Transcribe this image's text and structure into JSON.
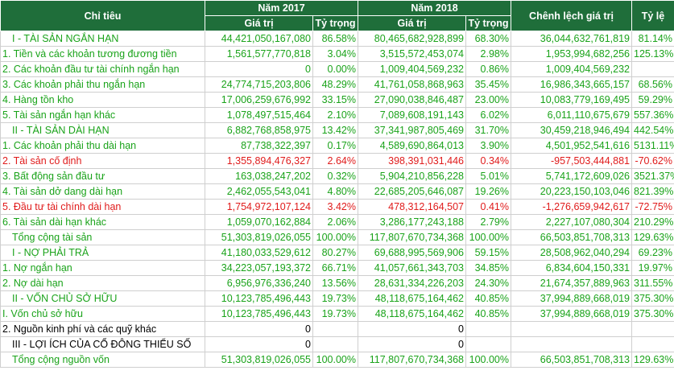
{
  "header": {
    "chi_tieu": "Chỉ tiêu",
    "nam_2017": "Năm 2017",
    "nam_2018": "Năm 2018",
    "chenh_lech": "Chênh lệch giá trị",
    "ty_le": "Tỷ lệ",
    "gia_tri_2017": "Giá trị",
    "ty_trong_2017": "Tỷ trọng",
    "gia_tri_2018": "Giá trị",
    "ty_trong_2018": "Tỷ trọng"
  },
  "rows": [
    {
      "label": "I - TÀI SẢN NGẮN HẠN",
      "v2017": "44,421,050,167,080",
      "p2017": "86.58%",
      "v2018": "80,465,682,928,899",
      "p2018": "68.30%",
      "diff": "36,044,632,761,819",
      "ratio": "81.14%"
    },
    {
      "label": "1. Tiền và các khoản tương đương tiền",
      "v2017": "1,561,577,770,818",
      "p2017": "3.04%",
      "v2018": "3,515,572,453,074",
      "p2018": "2.98%",
      "diff": "1,953,994,682,256",
      "ratio": "125.13%"
    },
    {
      "label": "2. Các khoản đầu tư tài chính ngắn hạn",
      "v2017": "0",
      "p2017": "0.00%",
      "v2018": "1,009,404,569,232",
      "p2018": "0.86%",
      "diff": "1,009,404,569,232",
      "ratio": ""
    },
    {
      "label": "3. Các khoản phải thu ngắn hạn",
      "v2017": "24,774,715,203,806",
      "p2017": "48.29%",
      "v2018": "41,761,058,868,963",
      "p2018": "35.45%",
      "diff": "16,986,343,665,157",
      "ratio": "68.56%"
    },
    {
      "label": "4. Hàng tồn kho",
      "v2017": "17,006,259,676,992",
      "p2017": "33.15%",
      "v2018": "27,090,038,846,487",
      "p2018": "23.00%",
      "diff": "10,083,779,169,495",
      "ratio": "59.29%"
    },
    {
      "label": "5. Tài sản ngắn hạn khác",
      "v2017": "1,078,497,515,464",
      "p2017": "2.10%",
      "v2018": "7,089,608,191,143",
      "p2018": "6.02%",
      "diff": "6,011,110,675,679",
      "ratio": "557.36%"
    },
    {
      "label": "II - TÀI SẢN DÀI HẠN",
      "v2017": "6,882,768,858,975",
      "p2017": "13.42%",
      "v2018": "37,341,987,805,469",
      "p2018": "31.70%",
      "diff": "30,459,218,946,494",
      "ratio": "442.54%"
    },
    {
      "label": "1. Các khoản phải thu dài hạn",
      "v2017": "87,738,322,397",
      "p2017": "0.17%",
      "v2018": "4,589,690,864,013",
      "p2018": "3.90%",
      "diff": "4,501,952,541,616",
      "ratio": "5131.11%"
    },
    {
      "label": "2. Tài sản cố định",
      "v2017": "1,355,894,476,327",
      "p2017": "2.64%",
      "v2018": "398,391,031,446",
      "p2018": "0.34%",
      "diff": "-957,503,444,881",
      "ratio": "-70.62%"
    },
    {
      "label": "3. Bất động sản đầu tư",
      "v2017": "163,038,247,202",
      "p2017": "0.32%",
      "v2018": "5,904,210,856,228",
      "p2018": "5.01%",
      "diff": "5,741,172,609,026",
      "ratio": "3521.37%"
    },
    {
      "label": "4. Tài sản dở dang dài hạn",
      "v2017": "2,462,055,543,041",
      "p2017": "4.80%",
      "v2018": "22,685,205,646,087",
      "p2018": "19.26%",
      "diff": "20,223,150,103,046",
      "ratio": "821.39%"
    },
    {
      "label": "5. Đầu tư tài chính dài hạn",
      "v2017": "1,754,972,107,124",
      "p2017": "3.42%",
      "v2018": "478,312,164,507",
      "p2018": "0.41%",
      "diff": "-1,276,659,942,617",
      "ratio": "-72.75%"
    },
    {
      "label": "6. Tài sản dài hạn khác",
      "v2017": "1,059,070,162,884",
      "p2017": "2.06%",
      "v2018": "3,286,177,243,188",
      "p2018": "2.79%",
      "diff": "2,227,107,080,304",
      "ratio": "210.29%"
    },
    {
      "label": "Tổng cộng tài sản",
      "v2017": "51,303,819,026,055",
      "p2017": "100.00%",
      "v2018": "117,807,670,734,368",
      "p2018": "100.00%",
      "diff": "66,503,851,708,313",
      "ratio": "129.63%"
    },
    {
      "label": "I - NỢ PHẢI TRẢ",
      "v2017": "41,180,033,529,612",
      "p2017": "80.27%",
      "v2018": "69,688,995,569,906",
      "p2018": "59.15%",
      "diff": "28,508,962,040,294",
      "ratio": "69.23%"
    },
    {
      "label": "1. Nợ ngắn hạn",
      "v2017": "34,223,057,193,372",
      "p2017": "66.71%",
      "v2018": "41,057,661,343,703",
      "p2018": "34.85%",
      "diff": "6,834,604,150,331",
      "ratio": "19.97%"
    },
    {
      "label": "2. Nợ dài hạn",
      "v2017": "6,956,976,336,240",
      "p2017": "13.56%",
      "v2018": "28,631,334,226,203",
      "p2018": "24.30%",
      "diff": "21,674,357,889,963",
      "ratio": "311.55%"
    },
    {
      "label": "II - VỐN CHỦ SỞ HỮU",
      "v2017": "10,123,785,496,443",
      "p2017": "19.73%",
      "v2018": "48,118,675,164,462",
      "p2018": "40.85%",
      "diff": "37,994,889,668,019",
      "ratio": "375.30%"
    },
    {
      "label": "I. Vốn chủ sở hữu",
      "v2017": "10,123,785,496,443",
      "p2017": "19.73%",
      "v2018": "48,118,675,164,462",
      "p2018": "40.85%",
      "diff": "37,994,889,668,019",
      "ratio": "375.30%"
    },
    {
      "label": "2. Nguồn kinh phí và các quỹ khác",
      "v2017": "0",
      "p2017": "",
      "v2018": "0",
      "p2018": "",
      "diff": "",
      "ratio": ""
    },
    {
      "label": "III - LỢI ÍCH CỦA CỔ ĐÔNG THIỂU SỐ",
      "v2017": "0",
      "p2017": "",
      "v2018": "0",
      "p2018": "",
      "diff": "",
      "ratio": ""
    },
    {
      "label": "Tổng cộng nguồn vốn",
      "v2017": "51,303,819,026,055",
      "p2017": "100.00%",
      "v2018": "117,807,670,734,368",
      "p2018": "100.00%",
      "diff": "66,503,851,708,313",
      "ratio": "129.63%"
    }
  ],
  "colors": {
    "header_bg": "#1f6e3a",
    "text_green": "#1aa31a",
    "text_red": "#e01b1b",
    "text_dark": "#000000"
  }
}
